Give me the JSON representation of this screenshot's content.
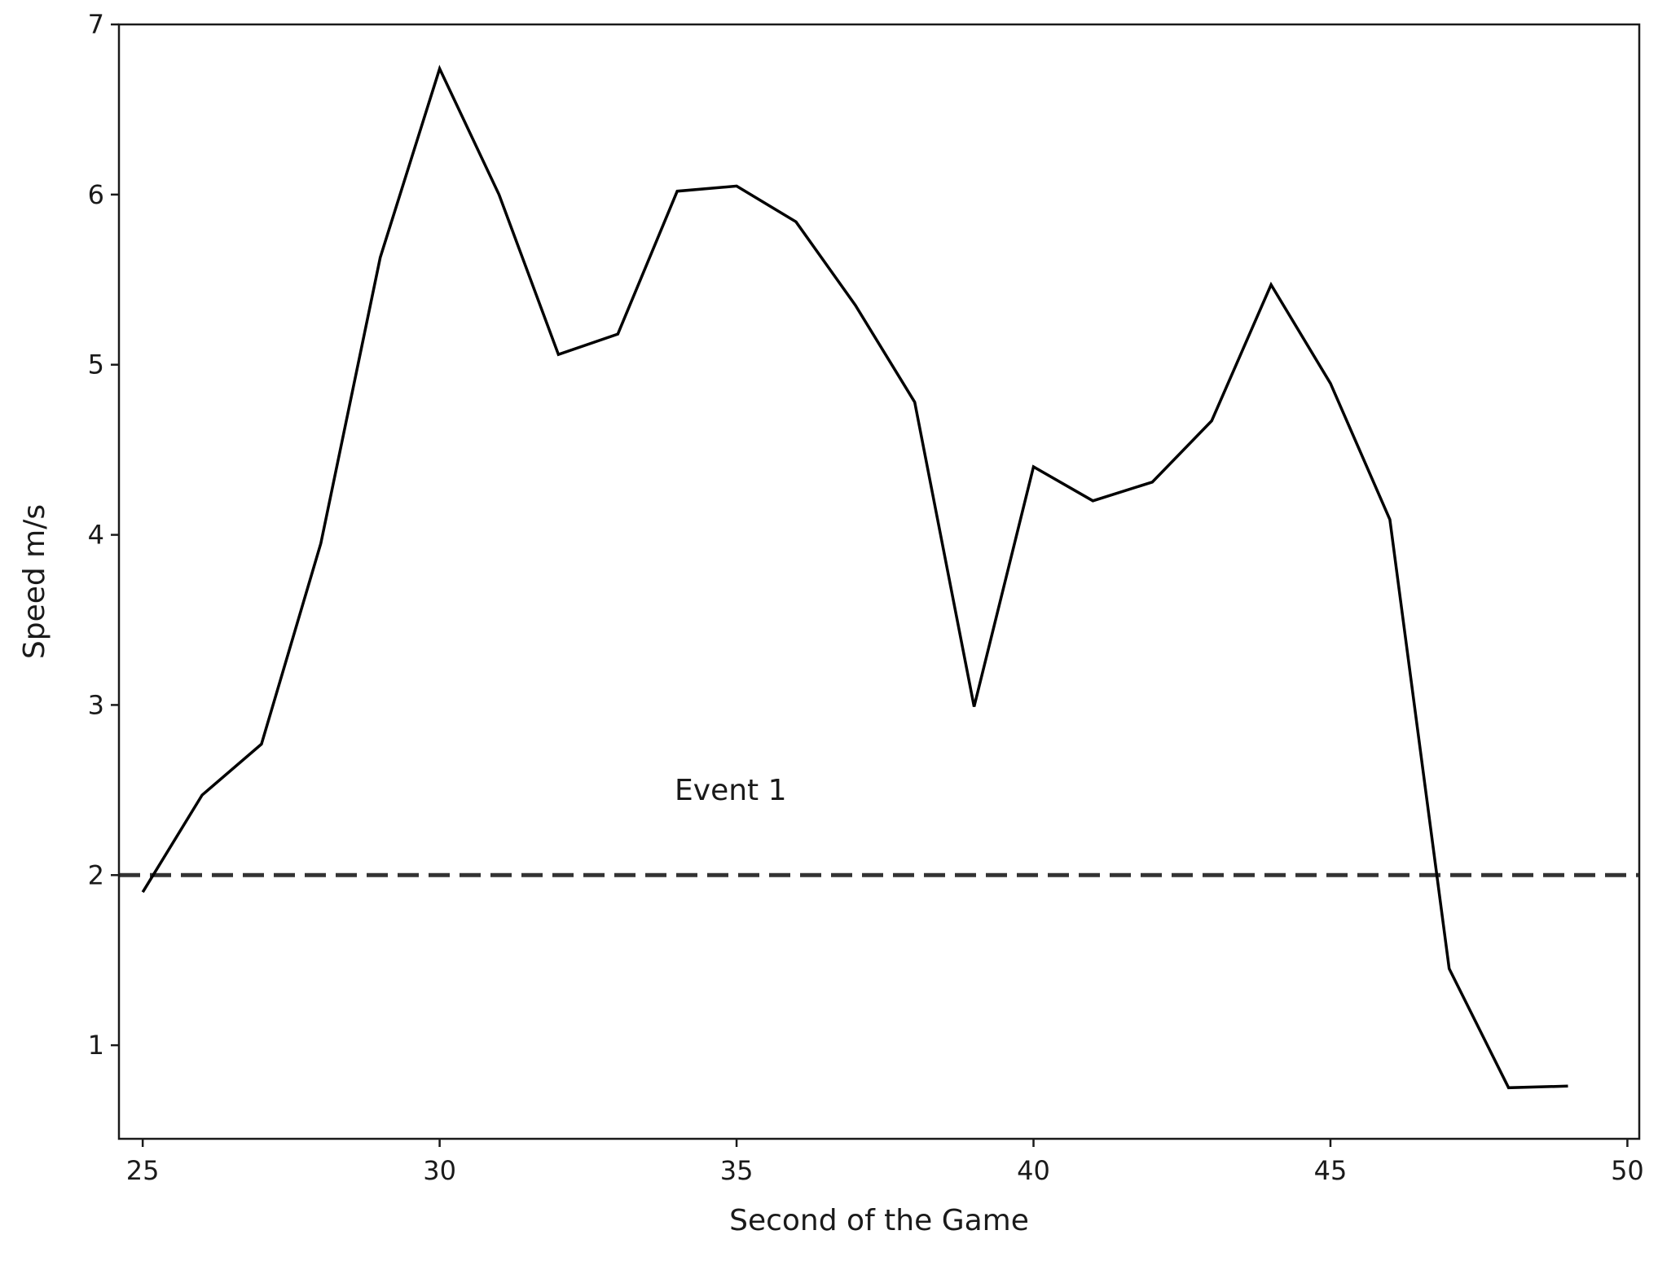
{
  "chart_data": {
    "type": "line",
    "title": "",
    "xlabel": "Second of the Game",
    "ylabel": "Speed m/s",
    "xlim": [
      24.6,
      50.2
    ],
    "ylim": [
      0.45,
      7.0
    ],
    "x_ticks": [
      25,
      30,
      35,
      40,
      45,
      50
    ],
    "y_ticks": [
      1,
      2,
      3,
      4,
      5,
      6,
      7
    ],
    "grid": false,
    "legend": "none",
    "series": [
      {
        "color": "#000000",
        "x": [
          25,
          26,
          27,
          28,
          29,
          30,
          31,
          32,
          33,
          34,
          35,
          36,
          37,
          38,
          39,
          40,
          41,
          42,
          43,
          44,
          45,
          46,
          47,
          48,
          49
        ],
        "y": [
          1.9,
          2.47,
          2.77,
          3.95,
          5.63,
          6.74,
          6.0,
          5.06,
          5.18,
          6.02,
          6.05,
          5.84,
          5.35,
          4.78,
          2.99,
          4.4,
          4.2,
          4.31,
          4.67,
          5.47,
          4.89,
          4.09,
          1.45,
          0.75,
          0.76
        ]
      }
    ],
    "threshold": {
      "y": 2.0,
      "style": "dashed",
      "color": "#333333"
    },
    "annotations": [
      {
        "text": "Event 1",
        "x": 34.9,
        "y": 2.5
      }
    ]
  }
}
